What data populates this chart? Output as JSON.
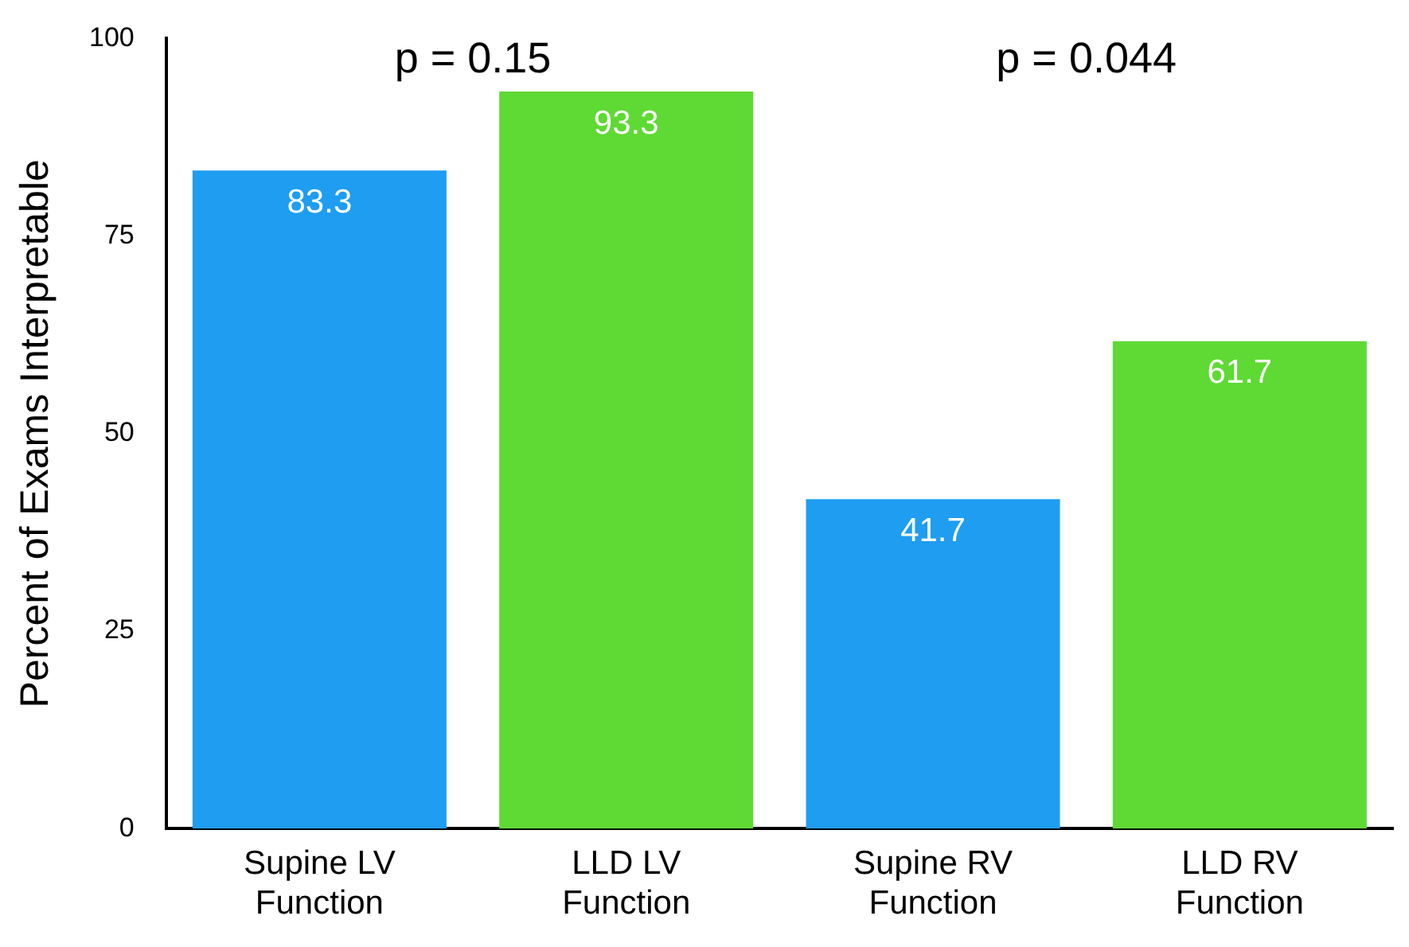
{
  "chart_data": {
    "type": "bar",
    "categories": [
      "Supine LV Function",
      "LLD LV Function",
      "Supine RV Function",
      "LLD RV Function"
    ],
    "values": [
      83.3,
      93.3,
      41.7,
      61.7
    ],
    "colors": [
      "#1e9df1",
      "#5fd934",
      "#1e9df1",
      "#5fd934"
    ],
    "ylabel": "Percent of Exams Interpretable",
    "ylim": [
      0,
      100
    ],
    "yticks": [
      0,
      25,
      50,
      75,
      100
    ],
    "grid": false,
    "legend": false,
    "data_labels": true,
    "annotations": [
      "p = 0.15",
      "p = 0.044"
    ]
  }
}
